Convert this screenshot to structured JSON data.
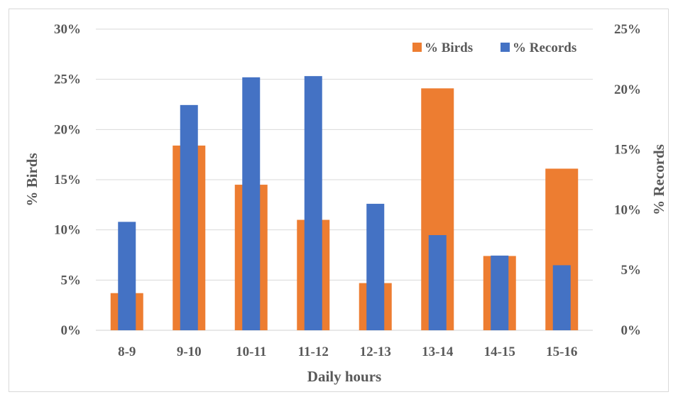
{
  "chart_data": {
    "type": "bar",
    "categories": [
      "8-9",
      "9-10",
      "10-11",
      "11-12",
      "12-13",
      "13-14",
      "14-15",
      "15-16"
    ],
    "series": [
      {
        "name": "% Birds",
        "axis": "left",
        "color": "#ED7D31",
        "values": [
          3.7,
          18.4,
          14.5,
          11.0,
          4.7,
          24.1,
          7.4,
          16.1
        ]
      },
      {
        "name": "% Records",
        "axis": "right",
        "color": "#4472C4",
        "values": [
          9.0,
          18.7,
          21.0,
          21.1,
          10.5,
          7.9,
          6.2,
          5.4
        ]
      }
    ],
    "xlabel": "Daily hours",
    "ylabel_left": "% Birds",
    "ylabel_right": "% Records",
    "ylim_left": [
      0,
      30
    ],
    "ylim_right": [
      0,
      25
    ],
    "yticks_left": [
      "0%",
      "5%",
      "10%",
      "15%",
      "20%",
      "25%",
      "30%"
    ],
    "yticks_right": [
      "0%",
      "5%",
      "10%",
      "15%",
      "20%",
      "25%"
    ],
    "grid": true,
    "legend_position": "top-right"
  }
}
